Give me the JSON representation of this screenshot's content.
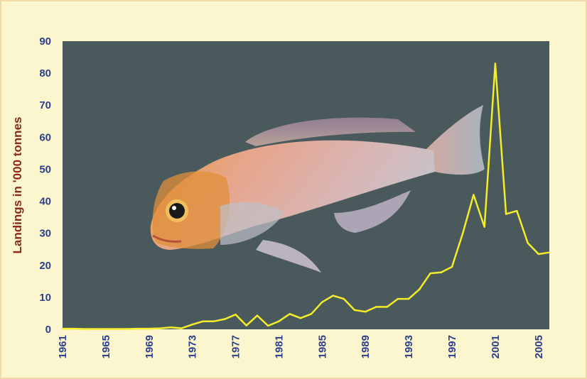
{
  "chart_data": {
    "type": "line",
    "title": "",
    "xlabel": "",
    "ylabel": "Landings in '000 tonnes",
    "ylim": [
      0,
      90
    ],
    "xlim": [
      1961,
      2006
    ],
    "y_ticks": [
      0,
      10,
      20,
      30,
      40,
      50,
      60,
      70,
      80,
      90
    ],
    "x_ticks": [
      1961,
      1965,
      1969,
      1973,
      1977,
      1981,
      1985,
      1989,
      1993,
      1997,
      2001,
      2005
    ],
    "grid": false,
    "legend": "none",
    "colors": {
      "page_background": "#fcf6cf",
      "plot_background": "#4a5a5c",
      "line": "#f5ec2a",
      "tick_labels": "#2c3f8c",
      "axis_title": "#8a2b1c"
    },
    "series": [
      {
        "x": [
          1961,
          1962,
          1963,
          1964,
          1965,
          1966,
          1967,
          1968,
          1969,
          1970,
          1971,
          1972,
          1973,
          1974,
          1975,
          1976,
          1977,
          1978,
          1979,
          1980,
          1981,
          1982,
          1983,
          1984,
          1985,
          1986,
          1987,
          1988,
          1989,
          1990,
          1991,
          1992,
          1993,
          1994,
          1995,
          1996,
          1997,
          1998,
          1999,
          2000,
          2001,
          2002,
          2003,
          2004,
          2005,
          2006
        ],
        "y": [
          0.2,
          0.2,
          0.1,
          0.1,
          0.1,
          0.1,
          0.1,
          0.2,
          0.2,
          0.3,
          0.6,
          0.3,
          1.5,
          2.5,
          2.5,
          3.2,
          4.6,
          1.2,
          4.3,
          1.1,
          2.5,
          4.8,
          3.5,
          4.8,
          8.5,
          10.5,
          9.5,
          6.0,
          5.5,
          7.0,
          7.0,
          9.5,
          9.5,
          12.5,
          17.5,
          17.8,
          19.5,
          30.0,
          42.0,
          32.0,
          83.0,
          36.0,
          37.0,
          27.0,
          23.5,
          24.0
        ]
      }
    ],
    "image": {
      "subject": "fish-photo"
    }
  }
}
